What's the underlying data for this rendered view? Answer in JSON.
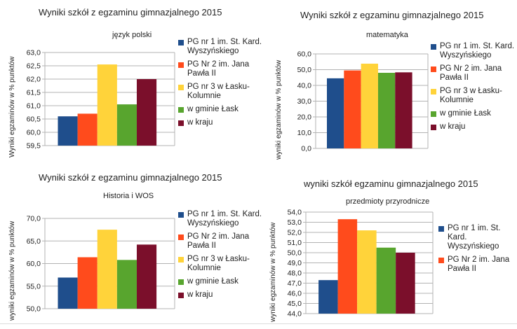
{
  "colors": [
    "#1f4e8c",
    "#ff4b1c",
    "#ffd33a",
    "#58a52e",
    "#7b0f2b"
  ],
  "chart_data": [
    {
      "type": "bar",
      "title": "Wyniki szkół z egzaminu gimnazjalnego 2015",
      "subtitle": "język polski",
      "ylabel": "Wyniki egzaminów w % punktów",
      "ylim": [
        59.5,
        63.0
      ],
      "yticks": [
        "59,5",
        "60,0",
        "60,5",
        "61,0",
        "61,5",
        "62,0",
        "62,5",
        "63,0"
      ],
      "grid": true,
      "series": [
        {
          "name": "PG nr 1 im. St. Kard.\nWyszyńskiego",
          "value": 60.6
        },
        {
          "name": "PG Nr 2  im. Jana\nPawła II",
          "value": 60.7
        },
        {
          "name": "PG nr 3 w Łasku-\nKolumnie",
          "value": 62.55
        },
        {
          "name": "w gminie Łask",
          "value": 61.05
        },
        {
          "name": "w kraju",
          "value": 62.0
        }
      ]
    },
    {
      "type": "bar",
      "title": "Wyniki szkół z egzaminu gimnazjalnego 2015",
      "subtitle": "matematyka",
      "ylabel": "wyniki egzaminów w % punktów",
      "ylim": [
        0,
        60
      ],
      "yticks": [
        "0,0",
        "10,0",
        "20,0",
        "30,0",
        "40,0",
        "50,0",
        "60,0"
      ],
      "grid": true,
      "series": [
        {
          "name": "PG nr 1 im. St. Kard.\nWyszyńskiego",
          "value": 44.5
        },
        {
          "name": "PG Nr 2  im. Jana\nPawła II",
          "value": 49.5
        },
        {
          "name": "PG nr 3 w Łasku-\nKolumnie",
          "value": 53.8
        },
        {
          "name": "w gminie Łask",
          "value": 48.0
        },
        {
          "name": "w kraju",
          "value": 48.3
        }
      ]
    },
    {
      "type": "bar",
      "title": "Wyniki szkół z egzaminu gimnazjalnego 2015",
      "subtitle": "Historia i WOS",
      "ylabel": "wyniki egzaminów w % punktów",
      "ylim": [
        50,
        70
      ],
      "yticks": [
        "50,0",
        "55,0",
        "60,0",
        "65,0",
        "70,0"
      ],
      "grid": true,
      "series": [
        {
          "name": "PG nr 1 im. St. Kard.\nWyszyńskiego",
          "value": 56.9
        },
        {
          "name": "PG Nr 2  im. Jana\nPawła II",
          "value": 61.4
        },
        {
          "name": "PG nr 3 w Łasku-\nKolumnie",
          "value": 67.5
        },
        {
          "name": "w gminie Łask",
          "value": 60.8
        },
        {
          "name": "w kraju",
          "value": 64.2
        }
      ]
    },
    {
      "type": "bar",
      "title": "wyniki szkół egzaminu gimnazjalnego 2015",
      "subtitle": "przedmioty przyrodnicze",
      "ylabel": "wyniki egzaminów w % punktów",
      "ylim": [
        44,
        54
      ],
      "yticks": [
        "44,0",
        "45,0",
        "46,0",
        "47,0",
        "48,0",
        "49,0",
        "50,0",
        "51,0",
        "52,0",
        "53,0",
        "54,0"
      ],
      "grid": true,
      "series": [
        {
          "name": "PG nr 1 im. St.\nKard.\nWyszyńskiego",
          "value": 47.3
        },
        {
          "name": "PG Nr 2  im. Jana\nPawła II",
          "value": 53.3
        },
        {
          "name": "",
          "value": 52.2
        },
        {
          "name": "",
          "value": 50.5
        },
        {
          "name": "",
          "value": 50.0
        }
      ]
    }
  ]
}
